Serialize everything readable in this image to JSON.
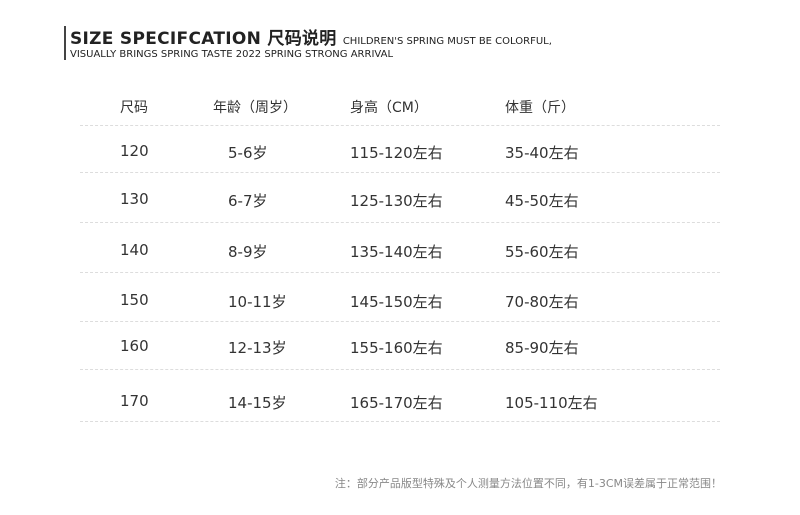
{
  "header": {
    "title": "SIZE SPECIFCATION 尺码说明",
    "subtitle": "CHILDREN'S SPRING MUST BE COLORFUL,",
    "line2": "VISUALLY BRINGS SPRING TASTE 2022 SPRING STRONG ARRIVAL"
  },
  "table": {
    "columns": [
      "尺码",
      "年龄（周岁）",
      "身高（CM）",
      "体重（斤）"
    ],
    "rows": [
      [
        "120",
        "5-6岁",
        "115-120左右",
        "35-40左右"
      ],
      [
        "130",
        "6-7岁",
        "125-130左右",
        "45-50左右"
      ],
      [
        "140",
        "8-9岁",
        "135-140左右",
        "55-60左右"
      ],
      [
        "150",
        "10-11岁",
        "145-150左右",
        "70-80左右"
      ],
      [
        "160",
        "12-13岁",
        "155-160左右",
        "85-90左右"
      ],
      [
        "170",
        "14-15岁",
        "165-170左右",
        "105-110左右"
      ]
    ]
  },
  "note": "注：部分产品版型特殊及个人测量方法位置不同，有1-3CM误差属于正常范围！"
}
